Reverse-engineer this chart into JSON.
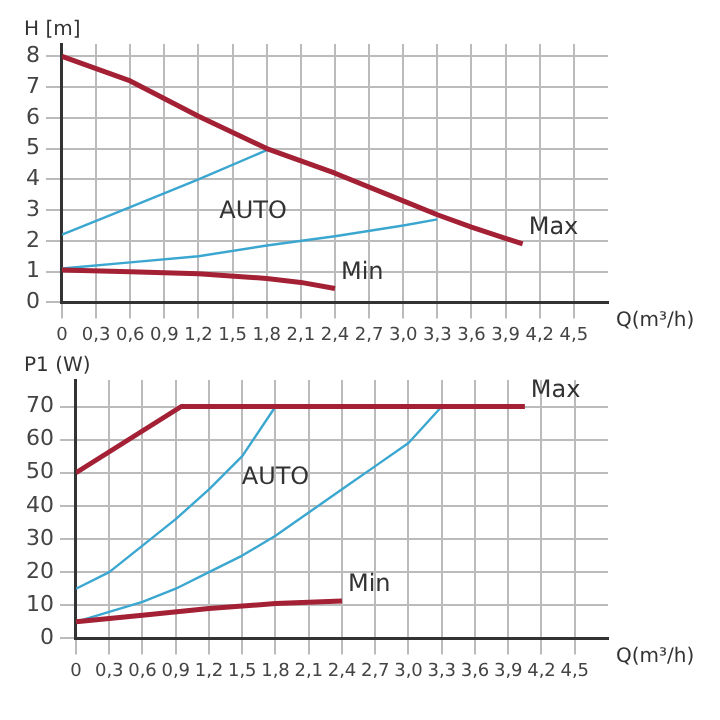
{
  "chart_data": [
    {
      "type": "line",
      "xlabel": "Q(m³/h)",
      "ylabel": "H [m]",
      "marker": "none",
      "line_style": "solid",
      "grid": true,
      "legend": false,
      "xlim": [
        0,
        4.8
      ],
      "ylim": [
        0,
        8.4
      ],
      "xticks": [
        0,
        {
          "value": 0.3,
          "label": "0,3"
        },
        {
          "value": 0.6,
          "label": "0,6"
        },
        {
          "value": 0.9,
          "label": "0,9"
        },
        {
          "value": 1.2,
          "label": "1,2"
        },
        {
          "value": 1.5,
          "label": "1,5"
        },
        {
          "value": 1.8,
          "label": "1,8"
        },
        {
          "value": 2.1,
          "label": "2,1"
        },
        {
          "value": 2.4,
          "label": "2,4"
        },
        {
          "value": 2.7,
          "label": "2,7"
        },
        {
          "value": 3.0,
          "label": "3,0"
        },
        {
          "value": 3.3,
          "label": "3,3"
        },
        {
          "value": 3.6,
          "label": "3,6"
        },
        {
          "value": 3.9,
          "label": "3,9"
        },
        {
          "value": 4.2,
          "label": "4,2"
        },
        {
          "value": 4.5,
          "label": "4,5"
        }
      ],
      "yticks": [
        0,
        1,
        2,
        3,
        4,
        5,
        6,
        7,
        8
      ],
      "annotations": [
        "AUTO"
      ],
      "series": [
        {
          "name": "Max",
          "color": "#a32035",
          "x": [
            0,
            0.6,
            1.2,
            1.8,
            2.4,
            3.0,
            3.3,
            3.6,
            4.05
          ],
          "values": [
            8,
            7.2,
            6.05,
            5.0,
            4.2,
            3.3,
            2.85,
            2.45,
            1.9
          ]
        },
        {
          "name": "Min",
          "color": "#a32035",
          "x": [
            0,
            0.6,
            1.2,
            1.8,
            2.1,
            2.4
          ],
          "values": [
            1.05,
            1.0,
            0.93,
            0.78,
            0.65,
            0.45
          ]
        },
        {
          "color": "#3ba7d0",
          "x": [
            0,
            0.6,
            1.2,
            1.8
          ],
          "values": [
            2.2,
            3.1,
            4.0,
            4.95
          ]
        },
        {
          "color": "#3ba7d0",
          "x": [
            0,
            0.6,
            1.2,
            1.8,
            2.4,
            3.0,
            3.3
          ],
          "values": [
            1.1,
            1.3,
            1.5,
            1.85,
            2.15,
            2.5,
            2.7
          ]
        }
      ]
    },
    {
      "type": "line",
      "xlabel": "Q(m³/h)",
      "ylabel": "P1 (W)",
      "marker": "none",
      "line_style": "solid",
      "grid": true,
      "legend": false,
      "xlim": [
        0,
        4.8
      ],
      "ylim": [
        0,
        78
      ],
      "xticks": [
        0,
        {
          "value": 0.3,
          "label": "0,3"
        },
        {
          "value": 0.6,
          "label": "0,6"
        },
        {
          "value": 0.9,
          "label": "0,9"
        },
        {
          "value": 1.2,
          "label": "1,2"
        },
        {
          "value": 1.5,
          "label": "1,5"
        },
        {
          "value": 1.8,
          "label": "1,8"
        },
        {
          "value": 2.1,
          "label": "2,1"
        },
        {
          "value": 2.4,
          "label": "2,4"
        },
        {
          "value": 2.7,
          "label": "2,7"
        },
        {
          "value": 3.0,
          "label": "3,0"
        },
        {
          "value": 3.3,
          "label": "3,3"
        },
        {
          "value": 3.6,
          "label": "3,6"
        },
        {
          "value": 3.9,
          "label": "3,9"
        },
        {
          "value": 4.2,
          "label": "4,2"
        },
        {
          "value": 4.5,
          "label": "4,5"
        }
      ],
      "yticks": [
        0,
        10,
        20,
        30,
        40,
        50,
        60,
        70
      ],
      "annotations": [
        "AUTO"
      ],
      "series": [
        {
          "name": "Max",
          "color": "#a32035",
          "x": [
            0,
            0.95,
            4.05
          ],
          "values": [
            50,
            70,
            70
          ]
        },
        {
          "name": "Min",
          "color": "#a32035",
          "x": [
            0,
            0.6,
            1.2,
            1.8,
            2.4
          ],
          "values": [
            5,
            7,
            9,
            10.5,
            11.3
          ]
        },
        {
          "color": "#3ba7d0",
          "x": [
            0,
            0.3,
            0.6,
            0.9,
            1.2,
            1.5,
            1.8
          ],
          "values": [
            15,
            20,
            28,
            36,
            45,
            55,
            70
          ]
        },
        {
          "color": "#3ba7d0",
          "x": [
            0,
            0.3,
            0.6,
            0.9,
            1.2,
            1.5,
            1.8,
            2.1,
            2.4,
            2.7,
            3.0,
            3.3
          ],
          "values": [
            5,
            8,
            11,
            15,
            20,
            25,
            31,
            38,
            45,
            52,
            59,
            70
          ]
        }
      ]
    }
  ]
}
